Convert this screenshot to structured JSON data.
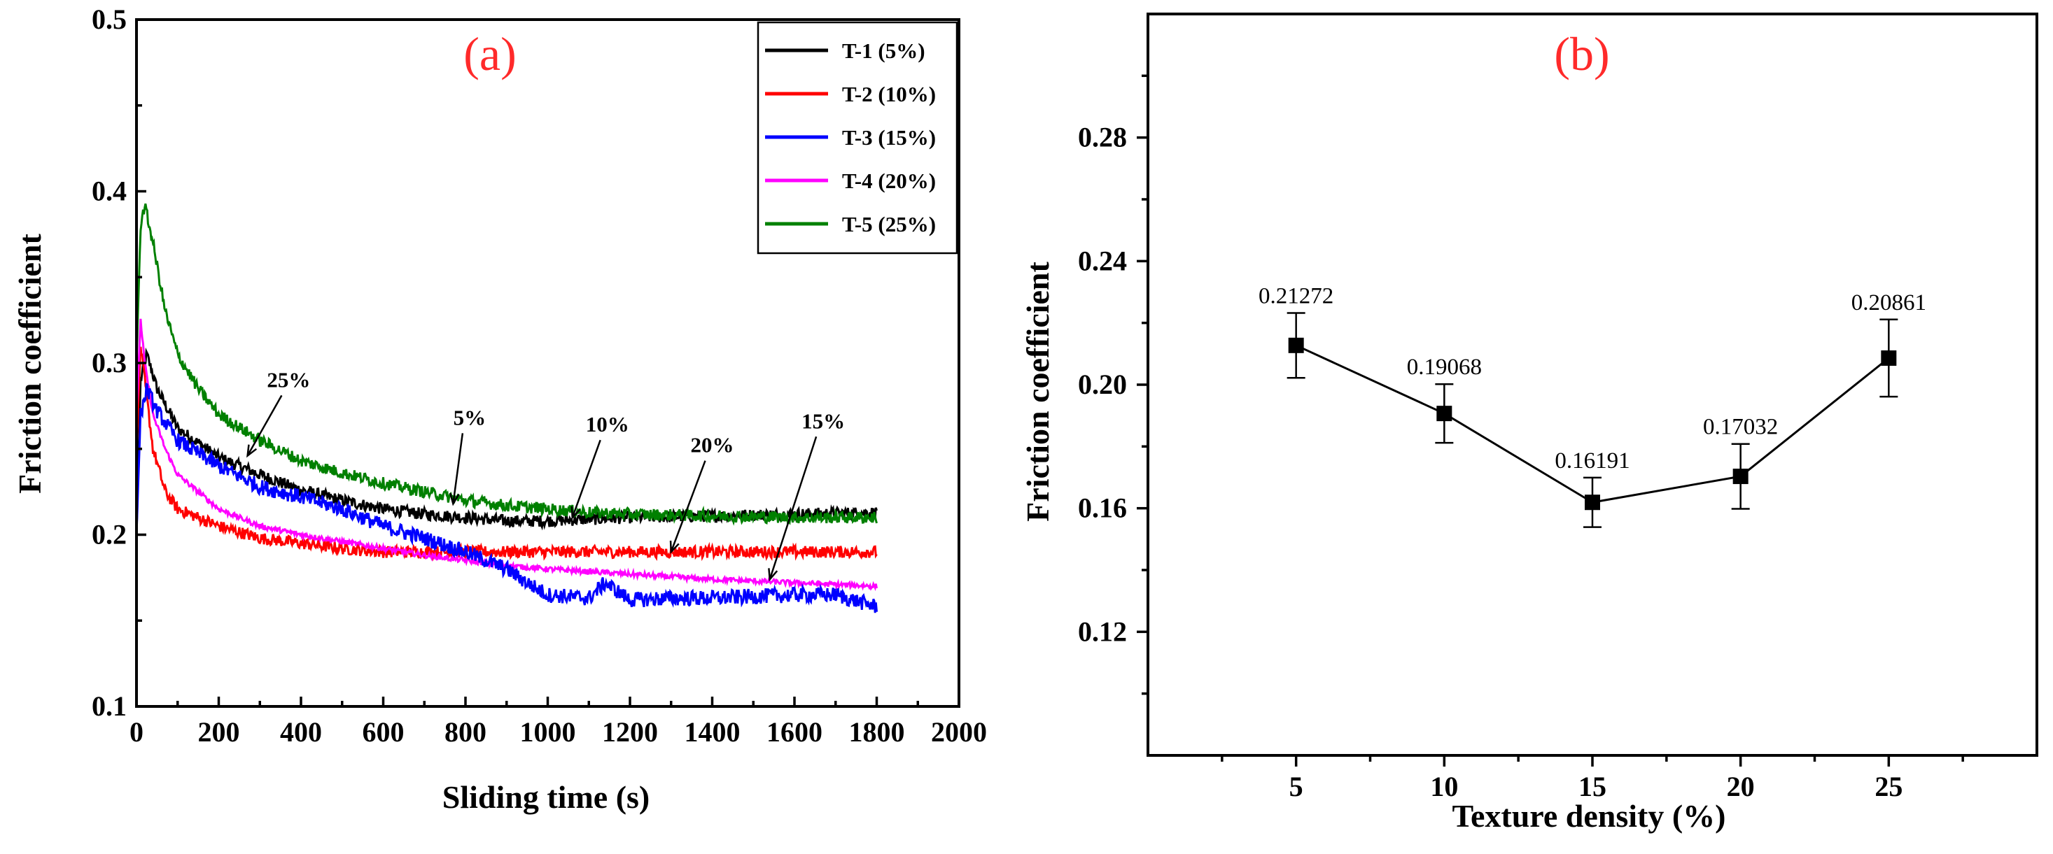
{
  "chart_data": [
    {
      "panel_label": "(a)",
      "type": "line",
      "xlabel": "Sliding time (s)",
      "ylabel": "Friction coefficient",
      "xlim": [
        0,
        2000
      ],
      "ylim": [
        0.1,
        0.5
      ],
      "xticks": [
        "0",
        "200",
        "400",
        "600",
        "800",
        "1000",
        "1200",
        "1400",
        "1600",
        "1800",
        "2000"
      ],
      "yticks": [
        "0.1",
        "0.2",
        "0.3",
        "0.4",
        "0.5"
      ],
      "legend_position": "top-right",
      "series": [
        {
          "name": "T-1 (5%)",
          "color": "#000000",
          "points": [
            [
              0,
              0.2
            ],
            [
              10,
              0.29
            ],
            [
              25,
              0.305
            ],
            [
              50,
              0.285
            ],
            [
              100,
              0.262
            ],
            [
              200,
              0.245
            ],
            [
              300,
              0.235
            ],
            [
              400,
              0.226
            ],
            [
              500,
              0.22
            ],
            [
              600,
              0.215
            ],
            [
              700,
              0.212
            ],
            [
              800,
              0.21
            ],
            [
              900,
              0.208
            ],
            [
              1000,
              0.208
            ],
            [
              1100,
              0.209
            ],
            [
              1200,
              0.21
            ],
            [
              1400,
              0.211
            ],
            [
              1600,
              0.212
            ],
            [
              1800,
              0.213
            ]
          ]
        },
        {
          "name": "T-2 (10%)",
          "color": "#ff0000",
          "points": [
            [
              0,
              0.25
            ],
            [
              10,
              0.31
            ],
            [
              20,
              0.29
            ],
            [
              40,
              0.25
            ],
            [
              70,
              0.225
            ],
            [
              100,
              0.215
            ],
            [
              200,
              0.205
            ],
            [
              300,
              0.198
            ],
            [
              400,
              0.195
            ],
            [
              500,
              0.192
            ],
            [
              600,
              0.19
            ],
            [
              700,
              0.19
            ],
            [
              800,
              0.19
            ],
            [
              1000,
              0.19
            ],
            [
              1200,
              0.19
            ],
            [
              1400,
              0.19
            ],
            [
              1600,
              0.19
            ],
            [
              1800,
              0.19
            ]
          ]
        },
        {
          "name": "T-3 (15%)",
          "color": "#0000ff",
          "points": [
            [
              0,
              0.2
            ],
            [
              10,
              0.27
            ],
            [
              25,
              0.285
            ],
            [
              50,
              0.272
            ],
            [
              100,
              0.255
            ],
            [
              200,
              0.24
            ],
            [
              300,
              0.228
            ],
            [
              400,
              0.222
            ],
            [
              500,
              0.215
            ],
            [
              600,
              0.205
            ],
            [
              700,
              0.198
            ],
            [
              800,
              0.19
            ],
            [
              900,
              0.18
            ],
            [
              950,
              0.172
            ],
            [
              1000,
              0.165
            ],
            [
              1100,
              0.163
            ],
            [
              1140,
              0.172
            ],
            [
              1200,
              0.162
            ],
            [
              1300,
              0.163
            ],
            [
              1400,
              0.163
            ],
            [
              1500,
              0.164
            ],
            [
              1600,
              0.165
            ],
            [
              1700,
              0.165
            ],
            [
              1800,
              0.158
            ]
          ]
        },
        {
          "name": "T-4 (20%)",
          "color": "#ff00ff",
          "points": [
            [
              0,
              0.27
            ],
            [
              10,
              0.325
            ],
            [
              20,
              0.3
            ],
            [
              40,
              0.27
            ],
            [
              70,
              0.25
            ],
            [
              100,
              0.235
            ],
            [
              200,
              0.215
            ],
            [
              300,
              0.205
            ],
            [
              400,
              0.2
            ],
            [
              500,
              0.196
            ],
            [
              600,
              0.192
            ],
            [
              700,
              0.188
            ],
            [
              800,
              0.185
            ],
            [
              900,
              0.182
            ],
            [
              1000,
              0.18
            ],
            [
              1200,
              0.177
            ],
            [
              1400,
              0.174
            ],
            [
              1600,
              0.172
            ],
            [
              1800,
              0.17
            ]
          ]
        },
        {
          "name": "T-5 (25%)",
          "color": "#008000",
          "points": [
            [
              0,
              0.3
            ],
            [
              10,
              0.38
            ],
            [
              20,
              0.392
            ],
            [
              40,
              0.37
            ],
            [
              70,
              0.33
            ],
            [
              100,
              0.305
            ],
            [
              150,
              0.285
            ],
            [
              200,
              0.27
            ],
            [
              300,
              0.255
            ],
            [
              400,
              0.243
            ],
            [
              500,
              0.236
            ],
            [
              600,
              0.23
            ],
            [
              700,
              0.225
            ],
            [
              800,
              0.22
            ],
            [
              900,
              0.217
            ],
            [
              1000,
              0.215
            ],
            [
              1100,
              0.213
            ],
            [
              1200,
              0.212
            ],
            [
              1400,
              0.211
            ],
            [
              1600,
              0.21
            ],
            [
              1800,
              0.21
            ]
          ]
        }
      ],
      "annotations": [
        {
          "text": "25%",
          "x": 370,
          "y": 0.286,
          "arrow_to": [
            270,
            0.246
          ]
        },
        {
          "text": "5%",
          "x": 810,
          "y": 0.264,
          "arrow_to": [
            770,
            0.218
          ]
        },
        {
          "text": "10%",
          "x": 1145,
          "y": 0.26,
          "arrow_to": [
            1060,
            0.21
          ]
        },
        {
          "text": "20%",
          "x": 1400,
          "y": 0.248,
          "arrow_to": [
            1300,
            0.19
          ]
        },
        {
          "text": "15%",
          "x": 1670,
          "y": 0.262,
          "arrow_to": [
            1540,
            0.174
          ]
        }
      ]
    },
    {
      "panel_label": "(b)",
      "type": "line",
      "xlabel": "Texture density (%)",
      "ylabel": "Friction coefficient",
      "xlim": [
        0,
        30
      ],
      "ylim": [
        0.08,
        0.32
      ],
      "xticks": [
        "5",
        "10",
        "15",
        "20",
        "25"
      ],
      "yticks": [
        "0.12",
        "0.16",
        "0.20",
        "0.24",
        "0.28"
      ],
      "x": [
        5,
        10,
        15,
        20,
        25
      ],
      "values": [
        0.21272,
        0.19068,
        0.16191,
        0.17032,
        0.20861
      ],
      "errors": [
        0.0105,
        0.0095,
        0.008,
        0.0105,
        0.0125
      ],
      "data_labels": [
        "0.21272",
        "0.19068",
        "0.16191",
        "0.17032",
        "0.20861"
      ],
      "color": "#000000"
    }
  ]
}
